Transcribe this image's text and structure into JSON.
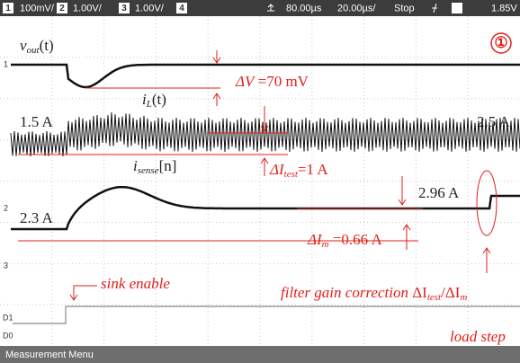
{
  "toolbar": {
    "channels": [
      {
        "number": "1",
        "scale": "100mV/"
      },
      {
        "number": "2",
        "scale": "1.00V/"
      },
      {
        "number": "3",
        "scale": "1.00V/"
      },
      {
        "number": "4"
      }
    ],
    "time_offset": "80.00µs",
    "time_scale": "20.00µs/",
    "status": "Stop",
    "trigger_level": "1.85V"
  },
  "markers": [
    "1",
    "2",
    "3",
    "D1",
    "D0"
  ],
  "footer": "Measurement Menu",
  "annotations": {
    "vout": {
      "symbol": "v",
      "sub": "out",
      "rest": "(t)"
    },
    "figure_number": "①",
    "delta_v": {
      "symbol": "ΔV",
      "rest": " =70 mV"
    },
    "il": {
      "symbol": "i",
      "sub": "L",
      "rest": "(t)"
    },
    "il_before": "1.5 A",
    "il_after": "2.5 A",
    "delta_itest": {
      "symbol": "ΔI",
      "sub": "test",
      "rest": "=1 A"
    },
    "isense": {
      "symbol": "i",
      "sub": "sense",
      "rest": "[n]"
    },
    "isense_before": "2.3 A",
    "isense_after": "2.96 A",
    "delta_im": {
      "symbol": "ΔI",
      "sub": "m",
      "rest": " =0.66 A"
    },
    "sink_enable": "sink enable",
    "filter_gain": {
      "text": "filter gain correction ",
      "symbol1": "ΔI",
      "sub1": "test",
      "slash": "/",
      "symbol2": "ΔI",
      "sub2": "m"
    },
    "load_step": "load step"
  }
}
